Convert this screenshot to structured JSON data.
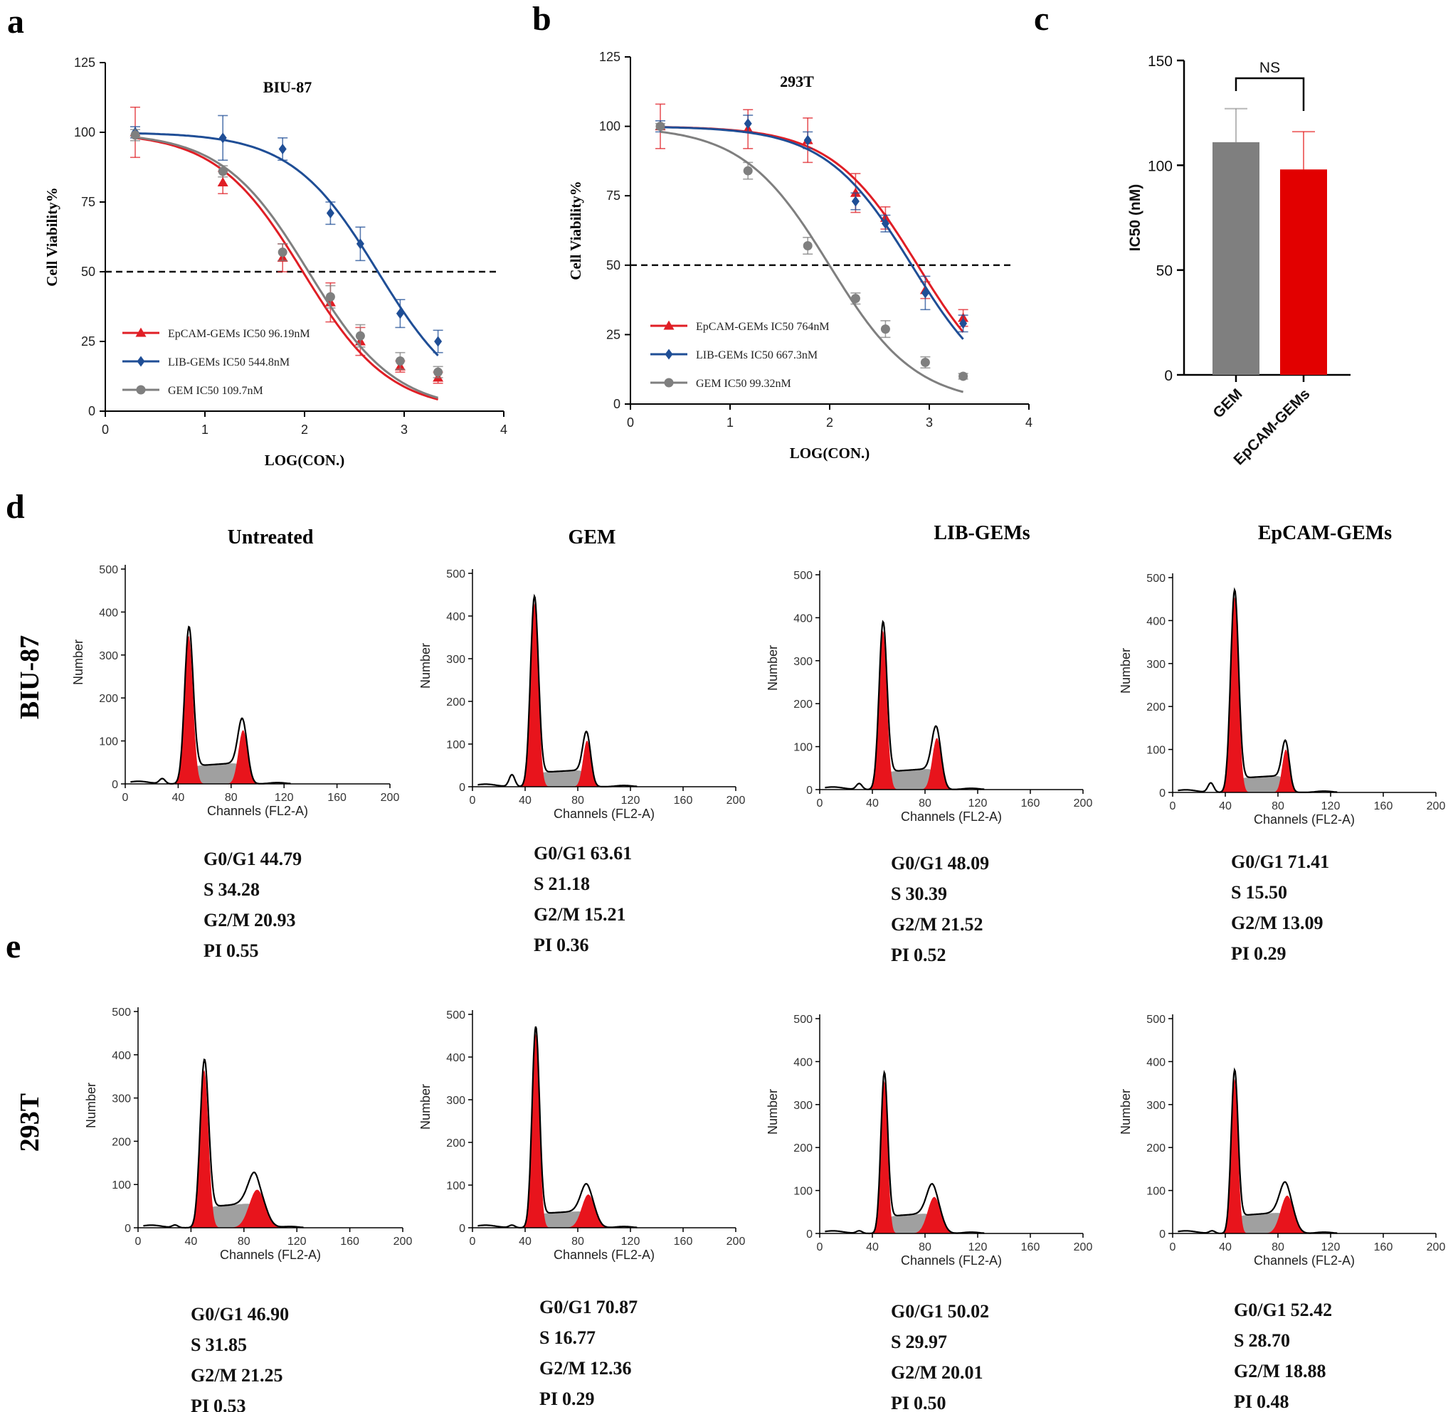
{
  "panels": [
    {
      "letter": "a"
    },
    {
      "letter": "b"
    },
    {
      "letter": "c"
    },
    {
      "letter": "d"
    },
    {
      "letter": "e"
    }
  ],
  "chart_data": [
    {
      "id": "a",
      "type": "line",
      "title": "BIU-87",
      "xlabel": "LOG(CON.)",
      "ylabel": "Cell Viability%",
      "xlim": [
        0,
        4
      ],
      "ylim": [
        0,
        125
      ],
      "xticks": [
        0,
        1,
        2,
        3,
        4
      ],
      "yticks": [
        0,
        25,
        50,
        75,
        100,
        125
      ],
      "reference_line": 50,
      "legend_position": "bottom-left",
      "x": [
        0.3,
        1.18,
        1.78,
        2.26,
        2.56,
        2.96,
        3.34
      ],
      "series": [
        {
          "name": "EpCAM-GEMs IC50 96.19nM",
          "color": "#e01e25",
          "marker": "triangle",
          "values": [
            100,
            82,
            55,
            39,
            25,
            16,
            12
          ],
          "errors": [
            9,
            4,
            5,
            7,
            5,
            2,
            2
          ],
          "ic50_log": 1.983,
          "top": 100,
          "bottom": 0,
          "hill": -1
        },
        {
          "name": "LIB-GEMs IC50 544.8nM",
          "color": "#1f4e96",
          "marker": "diamond",
          "values": [
            100,
            98,
            94,
            71,
            60,
            35,
            25
          ],
          "errors": [
            2,
            8,
            4,
            4,
            6,
            5,
            4
          ],
          "ic50_log": 2.736,
          "top": 100,
          "bottom": 0,
          "hill": -1
        },
        {
          "name": "GEM IC50 109.7nM",
          "color": "#7f7f7f",
          "marker": "circle",
          "values": [
            99,
            86,
            57,
            41,
            27,
            18,
            14
          ],
          "errors": [
            2,
            2,
            3,
            4,
            4,
            3,
            2
          ],
          "ic50_log": 2.04,
          "top": 100,
          "bottom": 0,
          "hill": -1
        }
      ]
    },
    {
      "id": "b",
      "type": "line",
      "title": "293T",
      "xlabel": "LOG(CON.)",
      "ylabel": "Cell Viability%",
      "xlim": [
        0,
        4
      ],
      "ylim": [
        0,
        125
      ],
      "xticks": [
        0,
        1,
        2,
        3,
        4
      ],
      "yticks": [
        0,
        25,
        50,
        75,
        100,
        125
      ],
      "reference_line": 50,
      "legend_position": "bottom-left",
      "x": [
        0.3,
        1.18,
        1.78,
        2.26,
        2.56,
        2.96,
        3.34
      ],
      "series": [
        {
          "name": "EpCAM-GEMs IC50 764nM",
          "color": "#e01e25",
          "marker": "triangle",
          "values": [
            100,
            99,
            95,
            76,
            67,
            41,
            31
          ],
          "errors": [
            8,
            7,
            8,
            7,
            4,
            3,
            3
          ],
          "ic50_log": 2.883,
          "top": 100,
          "bottom": 0,
          "hill": -1
        },
        {
          "name": "LIB-GEMs IC50 667.3nM",
          "color": "#1f4e96",
          "marker": "diamond",
          "values": [
            100,
            101,
            95,
            73,
            65,
            40,
            29
          ],
          "errors": [
            2,
            3,
            3,
            3,
            3,
            6,
            3
          ],
          "ic50_log": 2.824,
          "top": 100,
          "bottom": 0,
          "hill": -1
        },
        {
          "name": "GEM IC50 99.32nM",
          "color": "#7f7f7f",
          "marker": "circle",
          "values": [
            100,
            84,
            57,
            38,
            27,
            15,
            10
          ],
          "errors": [
            1,
            3,
            3,
            2,
            3,
            2,
            1
          ],
          "ic50_log": 1.997,
          "top": 100,
          "bottom": 0,
          "hill": -1
        }
      ]
    },
    {
      "id": "c",
      "type": "bar",
      "categories": [
        "GEM",
        "EpCAM-GEMs"
      ],
      "values": [
        111,
        98
      ],
      "errors": [
        16,
        18
      ],
      "colors": [
        "#7f7f7f",
        "#e20000"
      ],
      "ylabel": "IC50 (nM)",
      "ylim": [
        0,
        150
      ],
      "yticks": [
        0,
        50,
        100,
        150
      ],
      "significance": "NS"
    },
    {
      "id": "d",
      "type": "area",
      "row_label": "BIU-87",
      "xlabel": "Channels (FL2-A)",
      "ylabel": "Number",
      "xlim": [
        0,
        200
      ],
      "ylim": [
        0,
        500
      ],
      "xticks": [
        0,
        40,
        80,
        120,
        160,
        200
      ],
      "yticks": [
        0,
        100,
        200,
        300,
        400,
        500
      ],
      "panels": [
        {
          "title": "Untreated",
          "g1_peak": 48,
          "g1_height": 345,
          "g1_width": 3.2,
          "g2_peak": 89,
          "g2_height": 125,
          "g2_width": 3.5,
          "s_level": 50,
          "debris_peak": 28,
          "debris_height": 12,
          "stats": [
            {
              "label": "G0/G1",
              "value": "44.79"
            },
            {
              "label": "S",
              "value": "34.28"
            },
            {
              "label": "G2/M",
              "value": "20.93"
            },
            {
              "label": "PI",
              "value": "0.55"
            }
          ]
        },
        {
          "title": "GEM",
          "g1_peak": 47,
          "g1_height": 430,
          "g1_width": 3.0,
          "g2_peak": 87,
          "g2_height": 108,
          "g2_width": 3.0,
          "s_level": 40,
          "debris_peak": 30,
          "debris_height": 28,
          "stats": [
            {
              "label": "G0/G1",
              "value": "63.61"
            },
            {
              "label": "S",
              "value": "21.18"
            },
            {
              "label": "G2/M",
              "value": "15.21"
            },
            {
              "label": "PI",
              "value": "0.36"
            }
          ]
        },
        {
          "title": "LIB-GEMs",
          "g1_peak": 48,
          "g1_height": 370,
          "g1_width": 3.0,
          "g2_peak": 89,
          "g2_height": 120,
          "g2_width": 3.5,
          "s_level": 50,
          "debris_peak": 30,
          "debris_height": 14,
          "stats": [
            {
              "label": "G0/G1",
              "value": "48.09"
            },
            {
              "label": "S",
              "value": "30.39"
            },
            {
              "label": "G2/M",
              "value": "21.52"
            },
            {
              "label": "PI",
              "value": "0.52"
            }
          ]
        },
        {
          "title": "EpCAM-GEMs",
          "g1_peak": 47,
          "g1_height": 455,
          "g1_width": 3.0,
          "g2_peak": 86,
          "g2_height": 100,
          "g2_width": 2.8,
          "s_level": 40,
          "debris_peak": 29,
          "debris_height": 22,
          "stats": [
            {
              "label": "G0/G1",
              "value": "71.41"
            },
            {
              "label": "S",
              "value": "15.50"
            },
            {
              "label": "G2/M",
              "value": "13.09"
            },
            {
              "label": "PI",
              "value": "0.29"
            }
          ]
        }
      ]
    },
    {
      "id": "e",
      "type": "area",
      "row_label": "293T",
      "xlabel": "Channels (FL2-A)",
      "ylabel": "Number",
      "xlim": [
        0,
        200
      ],
      "ylim": [
        0,
        500
      ],
      "xticks": [
        0,
        40,
        80,
        120,
        160,
        200
      ],
      "yticks": [
        0,
        100,
        200,
        300,
        400,
        500
      ],
      "panels": [
        {
          "title": "",
          "g1_peak": 50,
          "g1_height": 365,
          "g1_width": 3.2,
          "g2_peak": 90,
          "g2_height": 88,
          "g2_width": 6.0,
          "s_level": 58,
          "debris_peak": 28,
          "debris_height": 6,
          "stats": [
            {
              "label": "G0/G1",
              "value": "46.90"
            },
            {
              "label": "S",
              "value": "31.85"
            },
            {
              "label": "G2/M",
              "value": "21.25"
            },
            {
              "label": "PI",
              "value": "0.53"
            }
          ]
        },
        {
          "title": "",
          "g1_peak": 48,
          "g1_height": 455,
          "g1_width": 2.8,
          "g2_peak": 88,
          "g2_height": 78,
          "g2_width": 5.0,
          "s_level": 40,
          "debris_peak": 30,
          "debris_height": 6,
          "stats": [
            {
              "label": "G0/G1",
              "value": "70.87"
            },
            {
              "label": "S",
              "value": "16.77"
            },
            {
              "label": "G2/M",
              "value": "12.36"
            },
            {
              "label": "PI",
              "value": "0.29"
            }
          ]
        },
        {
          "title": "",
          "g1_peak": 49,
          "g1_height": 355,
          "g1_width": 2.6,
          "g2_peak": 87,
          "g2_height": 85,
          "g2_width": 5.0,
          "s_level": 48,
          "debris_peak": 30,
          "debris_height": 6,
          "stats": [
            {
              "label": "G0/G1",
              "value": "50.02"
            },
            {
              "label": "S",
              "value": "29.97"
            },
            {
              "label": "G2/M",
              "value": "20.01"
            },
            {
              "label": "PI",
              "value": "0.50"
            }
          ]
        },
        {
          "title": "",
          "g1_peak": 47,
          "g1_height": 360,
          "g1_width": 2.6,
          "g2_peak": 87,
          "g2_height": 88,
          "g2_width": 5.0,
          "s_level": 50,
          "debris_peak": 30,
          "debris_height": 6,
          "stats": [
            {
              "label": "G0/G1",
              "value": "52.42"
            },
            {
              "label": "S",
              "value": "28.70"
            },
            {
              "label": "G2/M",
              "value": "18.88"
            },
            {
              "label": "PI",
              "value": "0.48"
            }
          ]
        }
      ]
    }
  ]
}
